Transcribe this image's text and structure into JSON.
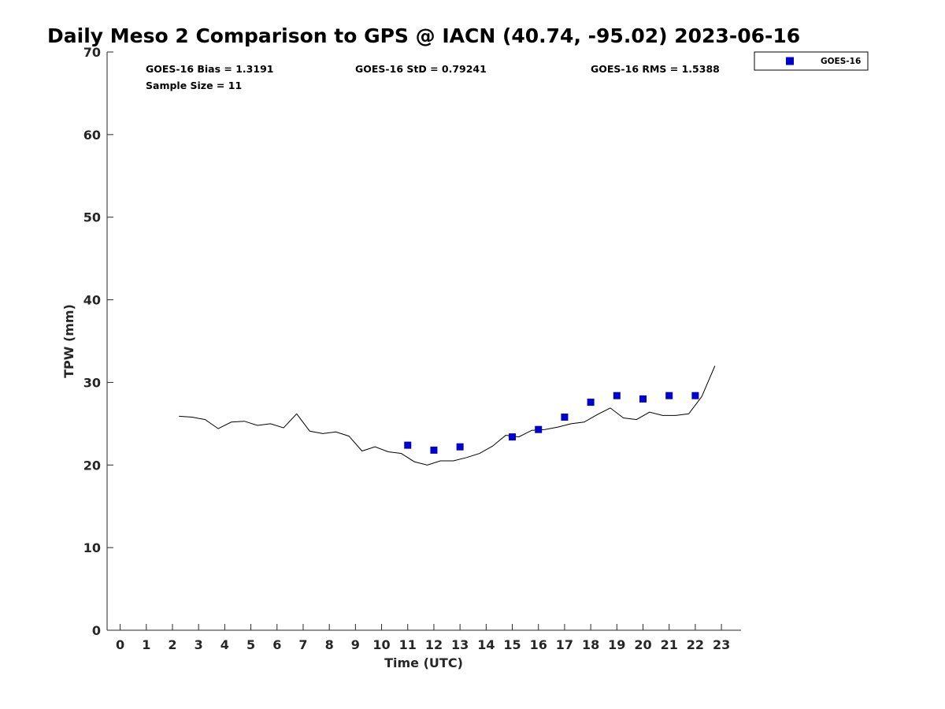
{
  "chart_data": {
    "type": "scatter",
    "title": "Daily Meso 2 Comparison to GPS @ IACN (40.74, -95.02) 2023-06-16",
    "xlabel": "Time (UTC)",
    "ylabel": "TPW (mm)",
    "xlim": [
      -0.5,
      23.75
    ],
    "ylim": [
      0,
      70
    ],
    "xticks": [
      0,
      1,
      2,
      3,
      4,
      5,
      6,
      7,
      8,
      9,
      10,
      11,
      12,
      13,
      14,
      15,
      16,
      17,
      18,
      19,
      20,
      21,
      22,
      23
    ],
    "yticks": [
      0,
      10,
      20,
      30,
      40,
      50,
      60,
      70
    ],
    "grid": false,
    "legend_position": "outside top-right",
    "stats": {
      "bias": "GOES-16 Bias = 1.3191",
      "std": "GOES-16 StD = 0.79241",
      "rms": "GOES-16 RMS = 1.5388",
      "sample": "Sample Size = 11"
    },
    "series": [
      {
        "name": "GOES-16",
        "kind": "scatter",
        "marker": "square",
        "color": "#0000CC",
        "x": [
          11,
          12,
          13,
          15,
          16,
          17,
          18,
          19,
          20,
          21,
          22
        ],
        "y": [
          22.4,
          21.8,
          22.2,
          23.4,
          24.3,
          25.8,
          27.6,
          28.4,
          28.0,
          28.4,
          28.4
        ]
      },
      {
        "kind": "line",
        "color": "#000000",
        "x": [
          2.25,
          2.75,
          3.25,
          3.75,
          4.25,
          4.75,
          5.25,
          5.75,
          6.25,
          6.75,
          7.25,
          7.75,
          8.25,
          8.75,
          9.25,
          9.75,
          10.25,
          10.75,
          11.25,
          11.75,
          12.25,
          12.75,
          13.25,
          13.75,
          14.25,
          14.75,
          15.25,
          15.75,
          16.25,
          16.75,
          17.25,
          17.75,
          18.25,
          18.75,
          19.25,
          19.75,
          20.25,
          20.75,
          21.25,
          21.75,
          22.25,
          22.75
        ],
        "y": [
          25.9,
          25.8,
          25.5,
          24.4,
          25.2,
          25.3,
          24.8,
          25.0,
          24.5,
          26.2,
          24.1,
          23.8,
          24.0,
          23.5,
          21.7,
          22.2,
          21.6,
          21.4,
          20.4,
          20.0,
          20.5,
          20.5,
          20.9,
          21.4,
          22.3,
          23.6,
          23.4,
          24.2,
          24.3,
          24.6,
          25.0,
          25.2,
          26.1,
          26.9,
          25.7,
          25.5,
          26.4,
          26.0,
          26.0,
          26.2,
          28.3,
          32.0
        ]
      }
    ]
  }
}
